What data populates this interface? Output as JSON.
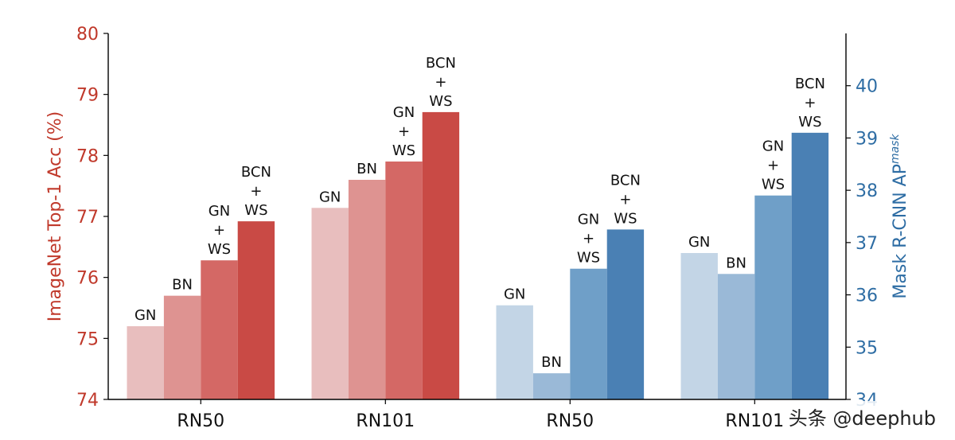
{
  "chart_data": {
    "type": "bar",
    "groups": [
      {
        "label": "RN50",
        "axis": "left",
        "bars": [
          {
            "name": "GN",
            "value": 75.2
          },
          {
            "name": "BN",
            "value": 75.7
          },
          {
            "name": "GN\n+\nWS",
            "value": 76.28
          },
          {
            "name": "BCN\n+\nWS",
            "value": 76.92
          }
        ]
      },
      {
        "label": "RN101",
        "axis": "left",
        "bars": [
          {
            "name": "GN",
            "value": 77.14
          },
          {
            "name": "BN",
            "value": 77.6
          },
          {
            "name": "GN\n+\nWS",
            "value": 77.9
          },
          {
            "name": "BCN\n+\nWS",
            "value": 78.71
          }
        ]
      },
      {
        "label": "RN50",
        "axis": "right",
        "bars": [
          {
            "name": "GN",
            "value": 35.8
          },
          {
            "name": "BN",
            "value": 34.5
          },
          {
            "name": "GN\n+\nWS",
            "value": 36.5
          },
          {
            "name": "BCN\n+\nWS",
            "value": 37.25
          }
        ]
      },
      {
        "label": "RN101",
        "axis": "right",
        "bars": [
          {
            "name": "GN",
            "value": 36.8
          },
          {
            "name": "BN",
            "value": 36.4
          },
          {
            "name": "GN\n+\nWS",
            "value": 37.9
          },
          {
            "name": "BCN\n+\nWS",
            "value": 39.1
          }
        ]
      }
    ],
    "left_axis": {
      "label": "ImageNet Top-1 Acc (%)",
      "ylim": [
        74,
        80
      ],
      "ticks": [
        74,
        75,
        76,
        77,
        78,
        79,
        80
      ],
      "color": "#c0392b"
    },
    "right_axis": {
      "label": "Mask R-CNN AP",
      "label_sup": "mask",
      "ylim": [
        34,
        41
      ],
      "ticks": [
        34,
        35,
        36,
        37,
        38,
        39,
        40
      ],
      "color": "#2e6da4"
    },
    "left_colors": [
      "#e8bebe",
      "#de9391",
      "#d46865",
      "#c94a45"
    ],
    "right_colors": [
      "#c3d5e6",
      "#9ab9d7",
      "#6f9fc8",
      "#4a80b4"
    ],
    "grid": false
  },
  "watermark": "头条 @deephub"
}
